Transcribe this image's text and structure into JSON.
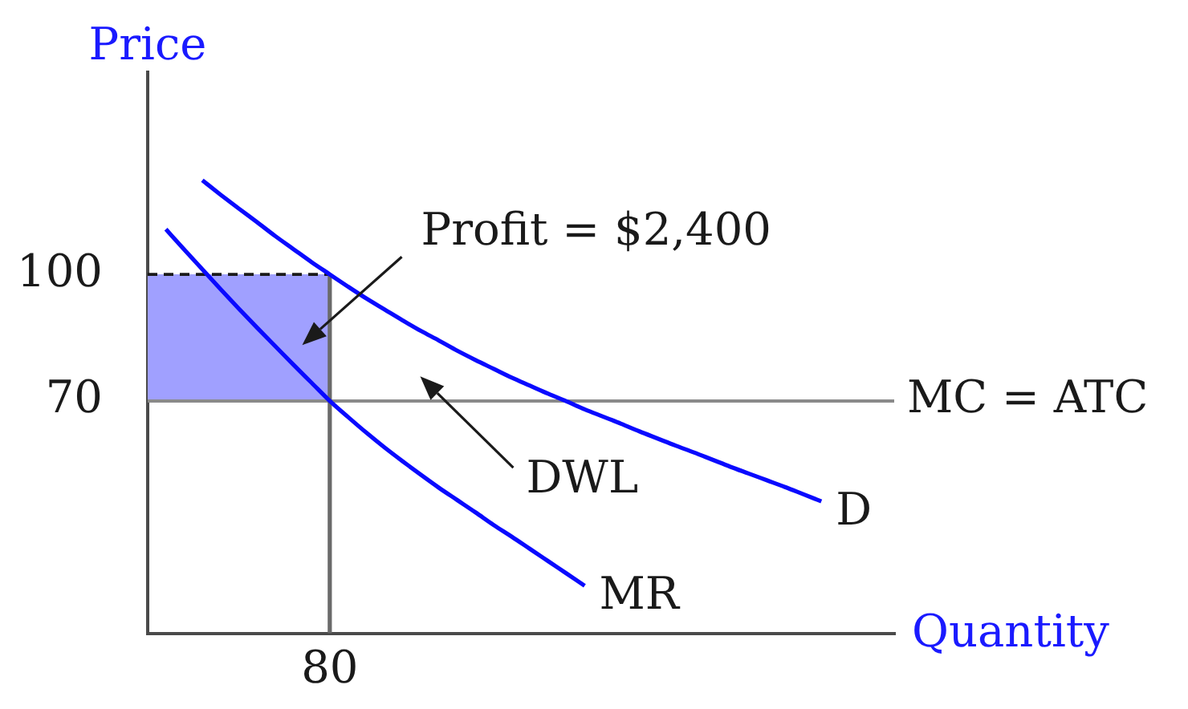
{
  "chart_data": {
    "type": "line",
    "xlabel": "Quantity",
    "ylabel": "Price",
    "categories": [
      null,
      null,
      null,
      null,
      null,
      null,
      null,
      null,
      null,
      null,
      "80",
      null,
      null,
      null,
      null,
      null,
      null,
      null,
      null,
      null,
      null,
      null,
      null,
      null,
      null,
      null,
      null,
      null,
      null,
      null,
      null,
      null,
      null,
      null,
      null,
      null,
      null,
      null,
      null,
      null,
      null,
      null
    ],
    "ylim": [
      15,
      148
    ],
    "yticks": [
      70,
      100
    ],
    "grid": false,
    "legend": false,
    "marker": "none",
    "series": [
      {
        "name": "D",
        "color": "#0a0aff",
        "values": [
          null,
          null,
          null,
          122.3,
          118.9,
          115.6,
          112.4,
          109.1,
          106.0,
          102.9,
          100,
          97.1,
          94.3,
          91.7,
          89.1,
          86.6,
          84.3,
          81.9,
          79.7,
          77.6,
          75.5,
          73.6,
          71.7,
          69.9,
          68.0,
          66.3,
          64.6,
          62.8,
          61.1,
          59.4,
          57.8,
          56.1,
          54.4,
          52.8,
          51.2,
          49.6,
          47.9,
          46.2,
          null,
          null,
          null,
          null
        ]
      },
      {
        "name": "MR",
        "color": "#0a0aff",
        "values": [
          null,
          110.7,
          105.9,
          101.2,
          96.5,
          91.9,
          87.4,
          83.0,
          78.6,
          74.3,
          70,
          66.2,
          62.5,
          59.0,
          55.7,
          52.5,
          49.4,
          46.5,
          43.6,
          40.6,
          37.8,
          34.9,
          32.0,
          29.1,
          26.2,
          null,
          null,
          null,
          null,
          null,
          null,
          null,
          null,
          null,
          null,
          null,
          null,
          null,
          null,
          null,
          null,
          null
        ]
      },
      {
        "color": "#1a1a1a",
        "line_style": "dashed",
        "values": [
          100,
          100,
          100,
          100,
          100,
          100,
          100,
          100,
          100,
          100,
          100,
          null,
          null,
          null,
          null,
          null,
          null,
          null,
          null,
          null,
          null,
          null,
          null,
          null,
          null,
          null,
          null,
          null,
          null,
          null,
          null,
          null,
          null,
          null,
          null,
          null,
          null,
          null,
          null,
          null,
          null,
          null
        ],
        "lower": [
          70,
          70,
          70,
          70,
          70,
          70,
          70,
          70,
          70,
          70,
          70,
          null,
          null,
          null,
          null,
          null,
          null,
          null,
          null,
          null,
          null,
          null,
          null,
          null,
          null,
          null,
          null,
          null,
          null,
          null,
          null,
          null,
          null,
          null,
          null,
          null,
          null,
          null,
          null,
          null,
          null,
          null
        ],
        "upper": [
          100,
          100,
          100,
          100,
          100,
          100,
          100,
          100,
          100,
          100,
          100,
          null,
          null,
          null,
          null,
          null,
          null,
          null,
          null,
          null,
          null,
          null,
          null,
          null,
          null,
          null,
          null,
          null,
          null,
          null,
          null,
          null,
          null,
          null,
          null,
          null,
          null,
          null,
          null,
          null,
          null,
          null
        ]
      },
      {
        "color": "#6a6a6a",
        "x": [
          "80",
          "80"
        ],
        "values": [
          15,
          100
        ]
      }
    ],
    "ref_lines": [
      {
        "axis": "y",
        "value": 70,
        "label": "MC = ATC",
        "color": "#8a8a8a"
      }
    ],
    "annotations": [
      "Profit = $2,400",
      "DWL"
    ]
  }
}
